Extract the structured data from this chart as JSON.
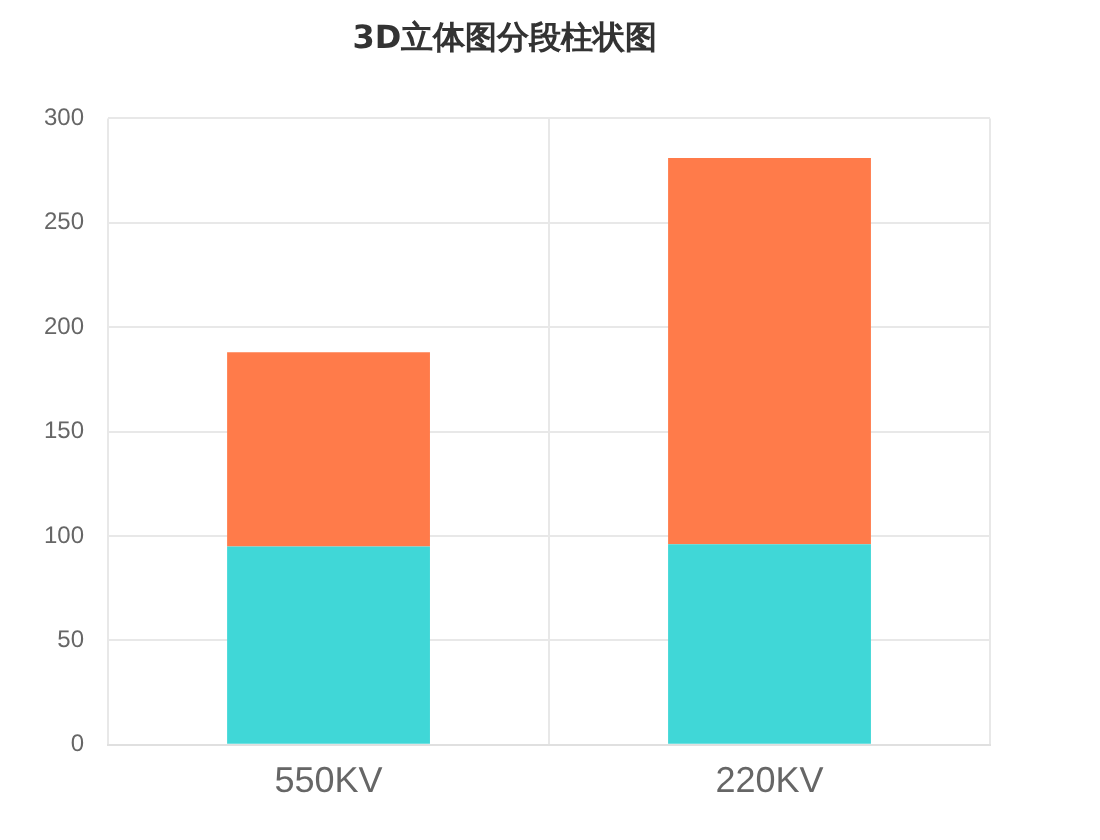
{
  "chart_data": {
    "type": "bar",
    "title": "3D立体图分段柱状图",
    "categories": [
      "550KV",
      "220KV"
    ],
    "stacked": true,
    "series": [
      {
        "color": "#40d7d7",
        "values": [
          95,
          96
        ]
      },
      {
        "color": "#ff7b4a",
        "values": [
          93,
          185
        ]
      }
    ],
    "ylim": [
      0,
      300
    ],
    "yticks": [
      0,
      50,
      100,
      150,
      200,
      250,
      300
    ],
    "grid": true,
    "legend": false
  }
}
